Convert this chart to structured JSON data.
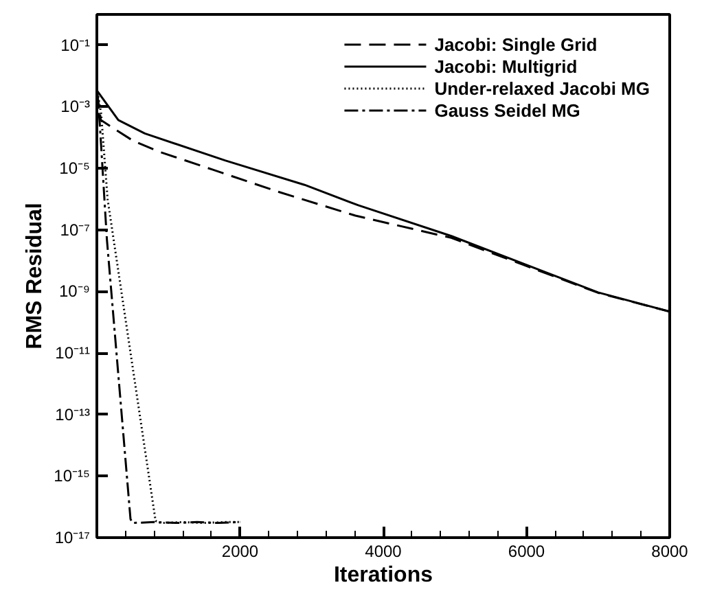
{
  "chart_data": {
    "type": "line",
    "xlabel": "Iterations",
    "ylabel": "RMS Residual",
    "log": "y",
    "xlim": [
      0,
      8000
    ],
    "ylim": [
      1e-17,
      1
    ],
    "xticks": [
      {
        "value": 400,
        "label": null
      },
      {
        "value": 800,
        "label": null
      },
      {
        "value": 1200,
        "label": null
      },
      {
        "value": 1600,
        "label": null
      },
      2000,
      {
        "value": 2400,
        "label": null
      },
      {
        "value": 2800,
        "label": null
      },
      {
        "value": 3200,
        "label": null
      },
      {
        "value": 3600,
        "label": null
      },
      4000,
      {
        "value": 4400,
        "label": null
      },
      {
        "value": 4800,
        "label": null
      },
      {
        "value": 5200,
        "label": null
      },
      {
        "value": 5600,
        "label": null
      },
      6000,
      {
        "value": 6400,
        "label": null
      },
      {
        "value": 6800,
        "label": null
      },
      {
        "value": 7200,
        "label": null
      },
      {
        "value": 7600,
        "label": null
      },
      8000
    ],
    "yticks": [
      {
        "value": 0.1,
        "label": "10⁻¹"
      },
      {
        "value": 0.001,
        "label": "10⁻³"
      },
      {
        "value": 1e-05,
        "label": "10⁻⁵"
      },
      {
        "value": 1e-07,
        "label": "10⁻⁷"
      },
      {
        "value": 1e-09,
        "label": "10⁻⁹"
      },
      {
        "value": 1e-11,
        "label": "10⁻¹¹"
      },
      {
        "value": 1e-13,
        "label": "10⁻¹³"
      },
      {
        "value": 1e-15,
        "label": "10⁻¹⁵"
      },
      {
        "value": 1e-17,
        "label": "10⁻¹⁷"
      }
    ],
    "grid": false,
    "legend": "top right",
    "marker": "none",
    "series": [
      {
        "name": "Jacobi: Single Grid",
        "color": "#000000",
        "line_style": "dashed",
        "x": [
          0,
          55,
          500,
          850,
          1620,
          2510,
          3610,
          4950,
          7000,
          8000
        ],
        "values": [
          0.0035,
          0.00037,
          8e-05,
          3.6e-05,
          9e-06,
          1.8e-06,
          2.9e-07,
          5.5e-08,
          9e-10,
          2.2e-10
        ]
      },
      {
        "name": "Jacobi: Multigrid",
        "color": "#000000",
        "line_style": "solid",
        "x": [
          0,
          300,
          670,
          1790,
          2900,
          3650,
          4950,
          7000,
          8000
        ],
        "values": [
          0.0034,
          0.00037,
          0.000135,
          1.8e-05,
          2.9e-06,
          6.3e-07,
          6.3e-08,
          9.3e-10,
          2.2e-10
        ]
      },
      {
        "name": "Under-relaxed Jacobi MG",
        "color": "#000000",
        "line_style": "dotted",
        "x": [
          0,
          60,
          150,
          820,
          900,
          1200,
          1500,
          1800,
          2000
        ],
        "values": [
          0.004,
          0.0006,
          1e-06,
          3.5e-17,
          3e-17,
          3.2e-17,
          3e-17,
          3.2e-17,
          3.2e-17
        ]
      },
      {
        "name": "Gauss Seidel MG",
        "color": "#000000",
        "line_style": "dashdot",
        "x": [
          0,
          40,
          140,
          470,
          500,
          800,
          1100,
          1400,
          1700,
          2000
        ],
        "values": [
          0.004,
          0.0003,
          5e-08,
          4e-17,
          3e-17,
          3.2e-17,
          3e-17,
          3.2e-17,
          3e-17,
          3.2e-17
        ]
      }
    ]
  }
}
